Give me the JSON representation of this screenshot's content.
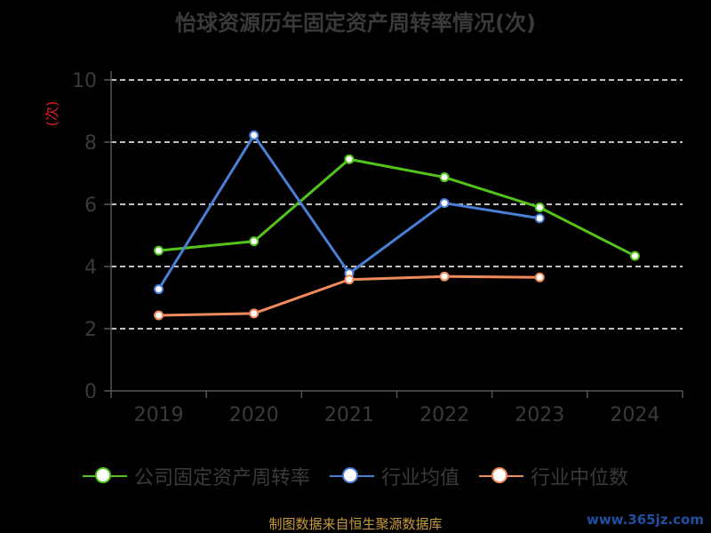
{
  "title": "怡球资源历年固定资产周转率情况(次)",
  "source_note": "制图数据来自恒生聚源数据库",
  "watermark": "www.365jz.com",
  "chart_data": {
    "type": "line",
    "title": "怡球资源历年固定资产周转率情况(次)",
    "ylabel": "(次)",
    "xlabel": "",
    "categories": [
      "2019",
      "2020",
      "2021",
      "2022",
      "2023",
      "2024"
    ],
    "ylim": [
      0,
      10
    ],
    "yticks": [
      0,
      2,
      4,
      6,
      8,
      10
    ],
    "grid": true,
    "legend_position": "bottom",
    "series": [
      {
        "name": "公司固定资产周转率",
        "color": "#52c41a",
        "values": [
          4.51,
          4.81,
          7.45,
          6.87,
          5.9,
          4.34
        ]
      },
      {
        "name": "行业均值",
        "color": "#4a7fd8",
        "values": [
          3.27,
          8.22,
          3.78,
          6.04,
          5.55,
          null
        ]
      },
      {
        "name": "行业中位数",
        "color": "#f08a5d",
        "values": [
          2.43,
          2.49,
          3.58,
          3.68,
          3.65,
          null
        ]
      }
    ]
  }
}
